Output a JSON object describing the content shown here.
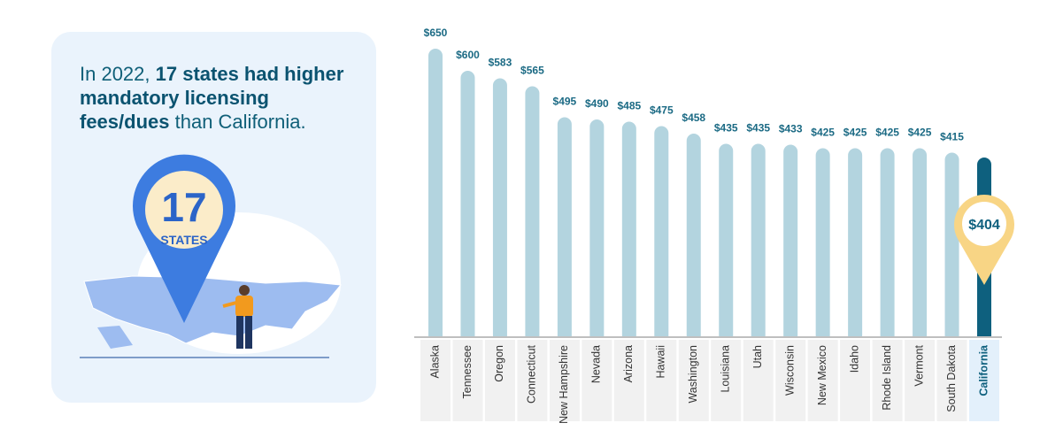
{
  "intro": {
    "lead": "In 2022, ",
    "bold": "17 states had higher mandatory licensing fees/dues",
    "tail": " than California."
  },
  "pin": {
    "number": "17",
    "label": "STATES"
  },
  "chart_data": {
    "type": "bar",
    "categories": [
      "Alaska",
      "Tennessee",
      "Oregon",
      "Connecticut",
      "New Hampshire",
      "Nevada",
      "Arizona",
      "Hawaii",
      "Washington",
      "Louisiana",
      "Utah",
      "Wisconsin",
      "New Mexico",
      "Idaho",
      "Rhode Island",
      "Vermont",
      "South Dakota",
      "California"
    ],
    "values": [
      650,
      600,
      583,
      565,
      495,
      490,
      485,
      475,
      458,
      435,
      435,
      433,
      425,
      425,
      425,
      425,
      415,
      404
    ],
    "value_labels": [
      "$650",
      "$600",
      "$583",
      "$565",
      "$495",
      "$490",
      "$485",
      "$475",
      "$458",
      "$435",
      "$435",
      "$433",
      "$425",
      "$425",
      "$425",
      "$425",
      "$415",
      "$404"
    ],
    "colors": [
      "#b3d4df",
      "#b3d4df",
      "#b3d4df",
      "#b3d4df",
      "#b3d4df",
      "#b3d4df",
      "#b3d4df",
      "#b3d4df",
      "#b3d4df",
      "#b3d4df",
      "#b3d4df",
      "#b3d4df",
      "#b3d4df",
      "#b3d4df",
      "#b3d4df",
      "#b3d4df",
      "#b3d4df",
      "#0e607e"
    ],
    "ylim": [
      0,
      650
    ]
  }
}
